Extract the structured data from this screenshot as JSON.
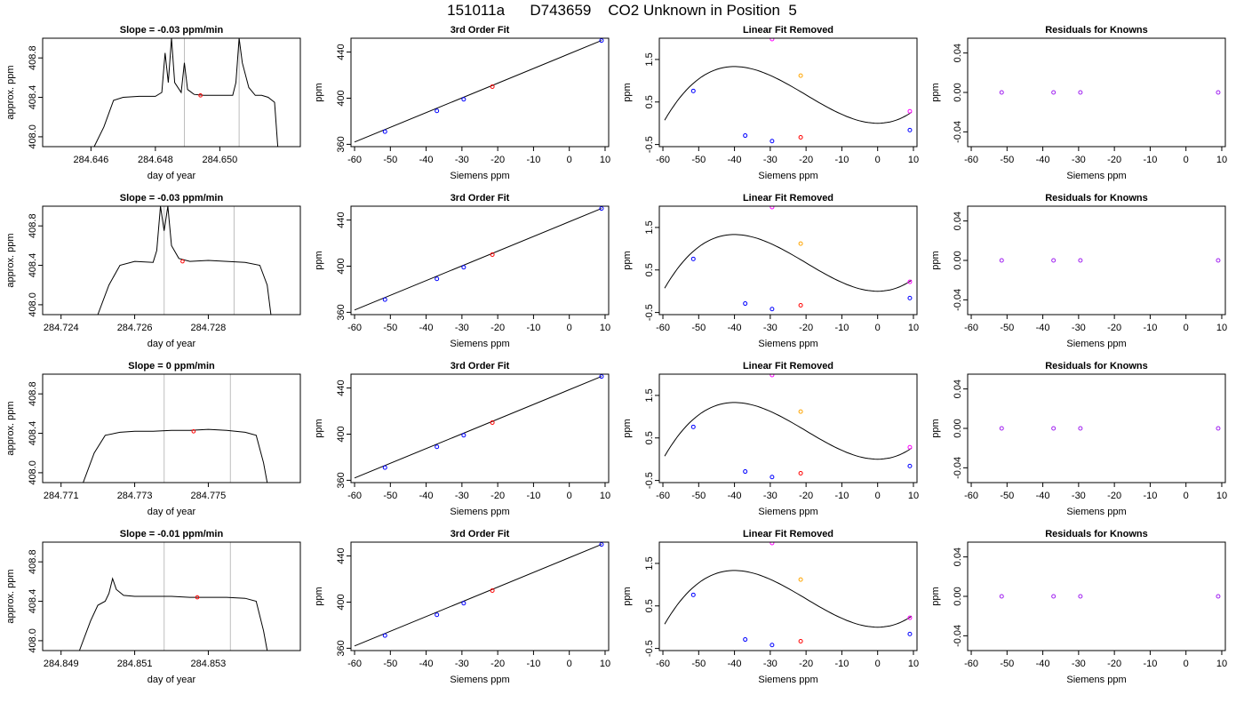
{
  "title": "151011a      D743659    CO2 Unknown in Position  5",
  "colors": {
    "trace": "#000000",
    "marker_line": "#bebebe",
    "reference_point": "#ff0000",
    "standard_point": "#0000ff",
    "known_residual": "#a020f0",
    "magenta_point": "#ff00ff",
    "orange_point": "#ffa500"
  },
  "chart_data": [
    {
      "type": "line",
      "title": "Slope =  -0.03  ppm/min",
      "xlabel": "day of year",
      "ylabel": "approx. ppm",
      "xlim": [
        284.6445,
        284.6525
      ],
      "ylim": [
        407.9,
        409.0
      ],
      "xticks": [
        "284.646",
        "284.648",
        "284.650"
      ],
      "xtick_values": [
        284.646,
        284.648,
        284.65
      ],
      "yticks": [
        "408.0",
        "408.4",
        "408.8"
      ],
      "ytick_values": [
        408.0,
        408.4,
        408.8
      ],
      "vlines": [
        284.6489,
        284.6506
      ],
      "red_point": {
        "x": 284.6494,
        "y": 408.42
      },
      "x": [
        284.6461,
        284.6464,
        284.6467,
        284.647,
        284.6475,
        284.648,
        284.6482,
        284.6483,
        284.6484,
        284.6485,
        284.6486,
        284.6488,
        284.6489,
        284.649,
        284.6492,
        284.6495,
        284.65,
        284.6504,
        284.6505,
        284.6506,
        284.6507,
        284.6509,
        284.6511,
        284.6513,
        284.6515,
        284.6517,
        284.6518
      ],
      "y": [
        407.9,
        408.1,
        408.37,
        408.4,
        408.41,
        408.41,
        408.45,
        408.85,
        408.55,
        409.0,
        408.55,
        408.45,
        408.75,
        408.48,
        408.43,
        408.42,
        408.42,
        408.42,
        408.55,
        409.0,
        408.75,
        408.5,
        408.42,
        408.42,
        408.4,
        408.35,
        407.9
      ]
    },
    {
      "type": "scatter",
      "title": "3rd Order Fit",
      "xlabel": "Siemens ppm",
      "ylabel": "ppm",
      "xlim": [
        -61,
        11
      ],
      "ylim": [
        358,
        452
      ],
      "xticks": [
        "-60",
        "-50",
        "-40",
        "-30",
        "-20",
        "-10",
        "0",
        "10"
      ],
      "xtick_values": [
        -60,
        -50,
        -40,
        -30,
        -20,
        -10,
        0,
        10
      ],
      "yticks": [
        "360",
        "400",
        "440"
      ],
      "ytick_values": [
        360,
        400,
        440
      ],
      "line": {
        "x": [
          -60,
          9
        ],
        "y": [
          362,
          450
        ]
      },
      "blue_points": {
        "x": [
          -51.5,
          -37,
          -29.5,
          9
        ],
        "y": [
          371,
          389,
          399,
          450
        ]
      },
      "red_points": {
        "x": [
          -21.5
        ],
        "y": [
          410
        ]
      }
    },
    {
      "type": "scatter",
      "title": "Linear Fit Removed",
      "xlabel": "Siemens ppm",
      "ylabel": "ppm",
      "xlim": [
        -61,
        11
      ],
      "ylim": [
        -0.55,
        2.0
      ],
      "xticks": [
        "-60",
        "-50",
        "-40",
        "-30",
        "-20",
        "-10",
        "0",
        "10"
      ],
      "xtick_values": [
        -60,
        -50,
        -40,
        -30,
        -20,
        -10,
        0,
        10
      ],
      "yticks": [
        "-0.5",
        "0.5",
        "1.5"
      ],
      "ytick_values": [
        -0.5,
        0.5,
        1.5
      ],
      "curve_coeffs": [
        0,
        0,
        0.0025,
        4.1667e-05
      ],
      "curve_xrange": [
        -59.5,
        9.5
      ],
      "blue_points": {
        "x": [
          -51.5,
          -37,
          -29.5,
          9
        ],
        "y": [
          0.76,
          -0.29,
          -0.42,
          -0.16
        ]
      },
      "red_points": {
        "x": [
          -21.5
        ],
        "y": [
          -0.33
        ]
      },
      "magenta_points": {
        "x": [
          -29.5,
          9
        ],
        "y": [
          1.98,
          0.28
        ]
      },
      "orange_points": {
        "x": [
          -21.5
        ],
        "y": [
          1.12
        ]
      }
    },
    {
      "type": "scatter",
      "title": "Residuals for Knowns",
      "xlabel": "Siemens ppm",
      "ylabel": "ppm",
      "xlim": [
        -61,
        11
      ],
      "ylim": [
        -0.055,
        0.055
      ],
      "xticks": [
        "-60",
        "-50",
        "-40",
        "-30",
        "-20",
        "-10",
        "0",
        "10"
      ],
      "xtick_values": [
        -60,
        -50,
        -40,
        -30,
        -20,
        -10,
        0,
        10
      ],
      "yticks": [
        "-0.04",
        "0.00",
        "0.04"
      ],
      "ytick_values": [
        -0.04,
        0.0,
        0.04
      ],
      "points": {
        "x": [
          -51.5,
          -37,
          -29.5,
          9
        ],
        "y": [
          0,
          0,
          0,
          0
        ]
      }
    },
    {
      "type": "line",
      "title": "Slope =  -0.03  ppm/min",
      "xlabel": "day of year",
      "ylabel": "approx. ppm",
      "xlim": [
        284.7235,
        284.7305
      ],
      "ylim": [
        407.9,
        409.0
      ],
      "xticks": [
        "284.724",
        "284.726",
        "284.728"
      ],
      "xtick_values": [
        284.724,
        284.726,
        284.728
      ],
      "yticks": [
        "408.0",
        "408.4",
        "408.8"
      ],
      "ytick_values": [
        408.0,
        408.4,
        408.8
      ],
      "vlines": [
        284.7268,
        284.7287
      ],
      "red_point": {
        "x": 284.7273,
        "y": 408.44
      },
      "x": [
        284.725,
        284.7253,
        284.7256,
        284.726,
        284.7265,
        284.7266,
        284.7267,
        284.7268,
        284.7269,
        284.727,
        284.7272,
        284.7275,
        284.728,
        284.7285,
        284.729,
        284.7294,
        284.7296,
        284.7297
      ],
      "y": [
        407.9,
        408.2,
        408.4,
        408.44,
        408.43,
        408.55,
        409.0,
        408.75,
        409.0,
        408.6,
        408.47,
        408.44,
        408.45,
        408.44,
        408.43,
        408.4,
        408.2,
        407.9
      ]
    },
    {
      "type": "scatter",
      "title": "3rd Order Fit",
      "xlabel": "Siemens ppm",
      "ylabel": "ppm",
      "xlim": [
        -61,
        11
      ],
      "ylim": [
        358,
        452
      ],
      "xticks": [
        "-60",
        "-50",
        "-40",
        "-30",
        "-20",
        "-10",
        "0",
        "10"
      ],
      "xtick_values": [
        -60,
        -50,
        -40,
        -30,
        -20,
        -10,
        0,
        10
      ],
      "yticks": [
        "360",
        "400",
        "440"
      ],
      "ytick_values": [
        360,
        400,
        440
      ],
      "line": {
        "x": [
          -60,
          9
        ],
        "y": [
          362,
          450
        ]
      },
      "blue_points": {
        "x": [
          -51.5,
          -37,
          -29.5,
          9
        ],
        "y": [
          371,
          389,
          399,
          450
        ]
      },
      "red_points": {
        "x": [
          -21.5
        ],
        "y": [
          410
        ]
      }
    },
    {
      "type": "scatter",
      "title": "Linear Fit Removed",
      "xlabel": "Siemens ppm",
      "ylabel": "ppm",
      "xlim": [
        -61,
        11
      ],
      "ylim": [
        -0.55,
        2.0
      ],
      "xticks": [
        "-60",
        "-50",
        "-40",
        "-30",
        "-20",
        "-10",
        "0",
        "10"
      ],
      "xtick_values": [
        -60,
        -50,
        -40,
        -30,
        -20,
        -10,
        0,
        10
      ],
      "yticks": [
        "-0.5",
        "0.5",
        "1.5"
      ],
      "ytick_values": [
        -0.5,
        0.5,
        1.5
      ],
      "curve_coeffs": [
        0,
        0,
        0.0025,
        4.1667e-05
      ],
      "curve_xrange": [
        -59.5,
        9.5
      ],
      "blue_points": {
        "x": [
          -51.5,
          -37,
          -29.5,
          9
        ],
        "y": [
          0.76,
          -0.29,
          -0.42,
          -0.16
        ]
      },
      "red_points": {
        "x": [
          -21.5
        ],
        "y": [
          -0.33
        ]
      },
      "magenta_points": {
        "x": [
          -29.5,
          9
        ],
        "y": [
          1.98,
          0.22
        ]
      },
      "orange_points": {
        "x": [
          -21.5
        ],
        "y": [
          1.12
        ]
      }
    },
    {
      "type": "scatter",
      "title": "Residuals for Knowns",
      "xlabel": "Siemens ppm",
      "ylabel": "ppm",
      "xlim": [
        -61,
        11
      ],
      "ylim": [
        -0.055,
        0.055
      ],
      "xticks": [
        "-60",
        "-50",
        "-40",
        "-30",
        "-20",
        "-10",
        "0",
        "10"
      ],
      "xtick_values": [
        -60,
        -50,
        -40,
        -30,
        -20,
        -10,
        0,
        10
      ],
      "yticks": [
        "-0.04",
        "0.00",
        "0.04"
      ],
      "ytick_values": [
        -0.04,
        0.0,
        0.04
      ],
      "points": {
        "x": [
          -51.5,
          -37,
          -29.5,
          9
        ],
        "y": [
          0,
          0,
          0,
          0
        ]
      }
    },
    {
      "type": "line",
      "title": "Slope =  0  ppm/min",
      "xlabel": "day of year",
      "ylabel": "approx. ppm",
      "xlim": [
        284.7705,
        284.7775
      ],
      "ylim": [
        407.9,
        409.0
      ],
      "xticks": [
        "284.771",
        "284.773",
        "284.775"
      ],
      "xtick_values": [
        284.771,
        284.773,
        284.775
      ],
      "yticks": [
        "408.0",
        "408.4",
        "408.8"
      ],
      "ytick_values": [
        408.0,
        408.4,
        408.8
      ],
      "vlines": [
        284.7738,
        284.7756
      ],
      "red_point": {
        "x": 284.7746,
        "y": 408.42
      },
      "x": [
        284.7716,
        284.7719,
        284.7722,
        284.7726,
        284.773,
        284.7735,
        284.774,
        284.7745,
        284.775,
        284.7755,
        284.776,
        284.7763,
        284.7765,
        284.7766
      ],
      "y": [
        407.9,
        408.2,
        408.38,
        408.41,
        408.42,
        408.42,
        408.43,
        408.43,
        408.44,
        408.43,
        408.41,
        408.38,
        408.1,
        407.9
      ]
    },
    {
      "type": "scatter",
      "title": "3rd Order Fit",
      "xlabel": "Siemens ppm",
      "ylabel": "ppm",
      "xlim": [
        -61,
        11
      ],
      "ylim": [
        358,
        452
      ],
      "xticks": [
        "-60",
        "-50",
        "-40",
        "-30",
        "-20",
        "-10",
        "0",
        "10"
      ],
      "xtick_values": [
        -60,
        -50,
        -40,
        -30,
        -20,
        -10,
        0,
        10
      ],
      "yticks": [
        "360",
        "400",
        "440"
      ],
      "ytick_values": [
        360,
        400,
        440
      ],
      "line": {
        "x": [
          -60,
          9
        ],
        "y": [
          362,
          450
        ]
      },
      "blue_points": {
        "x": [
          -51.5,
          -37,
          -29.5,
          9
        ],
        "y": [
          371,
          389,
          399,
          450
        ]
      },
      "red_points": {
        "x": [
          -21.5
        ],
        "y": [
          410
        ]
      }
    },
    {
      "type": "scatter",
      "title": "Linear Fit Removed",
      "xlabel": "Siemens ppm",
      "ylabel": "ppm",
      "xlim": [
        -61,
        11
      ],
      "ylim": [
        -0.55,
        2.0
      ],
      "xticks": [
        "-60",
        "-50",
        "-40",
        "-30",
        "-20",
        "-10",
        "0",
        "10"
      ],
      "xtick_values": [
        -60,
        -50,
        -40,
        -30,
        -20,
        -10,
        0,
        10
      ],
      "yticks": [
        "-0.5",
        "0.5",
        "1.5"
      ],
      "ytick_values": [
        -0.5,
        0.5,
        1.5
      ],
      "curve_coeffs": [
        0,
        0,
        0.0025,
        4.1667e-05
      ],
      "curve_xrange": [
        -59.5,
        9.5
      ],
      "blue_points": {
        "x": [
          -51.5,
          -37,
          -29.5,
          9
        ],
        "y": [
          0.76,
          -0.29,
          -0.42,
          -0.16
        ]
      },
      "red_points": {
        "x": [
          -21.5
        ],
        "y": [
          -0.33
        ]
      },
      "magenta_points": {
        "x": [
          -29.5,
          9
        ],
        "y": [
          1.98,
          0.28
        ]
      },
      "orange_points": {
        "x": [
          -21.5
        ],
        "y": [
          1.12
        ]
      }
    },
    {
      "type": "scatter",
      "title": "Residuals for Knowns",
      "xlabel": "Siemens ppm",
      "ylabel": "ppm",
      "xlim": [
        -61,
        11
      ],
      "ylim": [
        -0.055,
        0.055
      ],
      "xticks": [
        "-60",
        "-50",
        "-40",
        "-30",
        "-20",
        "-10",
        "0",
        "10"
      ],
      "xtick_values": [
        -60,
        -50,
        -40,
        -30,
        -20,
        -10,
        0,
        10
      ],
      "yticks": [
        "-0.04",
        "0.00",
        "0.04"
      ],
      "ytick_values": [
        -0.04,
        0.0,
        0.04
      ],
      "points": {
        "x": [
          -51.5,
          -37,
          -29.5,
          9
        ],
        "y": [
          0,
          0,
          0,
          0
        ]
      }
    },
    {
      "type": "line",
      "title": "Slope =  -0.01  ppm/min",
      "xlabel": "day of year",
      "ylabel": "approx. ppm",
      "xlim": [
        284.8485,
        284.8555
      ],
      "ylim": [
        407.9,
        409.0
      ],
      "xticks": [
        "284.849",
        "284.851",
        "284.853"
      ],
      "xtick_values": [
        284.849,
        284.851,
        284.853
      ],
      "yticks": [
        "408.0",
        "408.4",
        "408.8"
      ],
      "ytick_values": [
        408.0,
        408.4,
        408.8
      ],
      "vlines": [
        284.8518,
        284.8536
      ],
      "red_point": {
        "x": 284.8527,
        "y": 408.44
      },
      "x": [
        284.8495,
        284.8498,
        284.85,
        284.8502,
        284.8503,
        284.8504,
        284.8505,
        284.8507,
        284.851,
        284.8515,
        284.852,
        284.8525,
        284.853,
        284.8535,
        284.854,
        284.8543,
        284.8545,
        284.8546
      ],
      "y": [
        407.9,
        408.2,
        408.36,
        408.4,
        408.48,
        408.63,
        408.52,
        408.46,
        408.45,
        408.45,
        408.45,
        408.44,
        408.44,
        408.44,
        408.43,
        408.4,
        408.1,
        407.9
      ]
    },
    {
      "type": "scatter",
      "title": "3rd Order Fit",
      "xlabel": "Siemens ppm",
      "ylabel": "ppm",
      "xlim": [
        -61,
        11
      ],
      "ylim": [
        358,
        452
      ],
      "xticks": [
        "-60",
        "-50",
        "-40",
        "-30",
        "-20",
        "-10",
        "0",
        "10"
      ],
      "xtick_values": [
        -60,
        -50,
        -40,
        -30,
        -20,
        -10,
        0,
        10
      ],
      "yticks": [
        "360",
        "400",
        "440"
      ],
      "ytick_values": [
        360,
        400,
        440
      ],
      "line": {
        "x": [
          -60,
          9
        ],
        "y": [
          362,
          450
        ]
      },
      "blue_points": {
        "x": [
          -51.5,
          -37,
          -29.5,
          9
        ],
        "y": [
          371,
          389,
          399,
          450
        ]
      },
      "red_points": {
        "x": [
          -21.5
        ],
        "y": [
          410
        ]
      }
    },
    {
      "type": "scatter",
      "title": "Linear Fit Removed",
      "xlabel": "Siemens ppm",
      "ylabel": "ppm",
      "xlim": [
        -61,
        11
      ],
      "ylim": [
        -0.55,
        2.0
      ],
      "xticks": [
        "-60",
        "-50",
        "-40",
        "-30",
        "-20",
        "-10",
        "0",
        "10"
      ],
      "xtick_values": [
        -60,
        -50,
        -40,
        -30,
        -20,
        -10,
        0,
        10
      ],
      "yticks": [
        "-0.5",
        "0.5",
        "1.5"
      ],
      "ytick_values": [
        -0.5,
        0.5,
        1.5
      ],
      "curve_coeffs": [
        0,
        0,
        0.0025,
        4.1667e-05
      ],
      "curve_xrange": [
        -59.5,
        9.5
      ],
      "blue_points": {
        "x": [
          -51.5,
          -37,
          -29.5,
          9
        ],
        "y": [
          0.76,
          -0.29,
          -0.42,
          -0.16
        ]
      },
      "red_points": {
        "x": [
          -21.5
        ],
        "y": [
          -0.33
        ]
      },
      "magenta_points": {
        "x": [
          -29.5,
          9
        ],
        "y": [
          1.98,
          0.22
        ]
      },
      "orange_points": {
        "x": [
          -21.5
        ],
        "y": [
          1.12
        ]
      }
    },
    {
      "type": "scatter",
      "title": "Residuals for Knowns",
      "xlabel": "Siemens ppm",
      "ylabel": "ppm",
      "xlim": [
        -61,
        11
      ],
      "ylim": [
        -0.055,
        0.055
      ],
      "xticks": [
        "-60",
        "-50",
        "-40",
        "-30",
        "-20",
        "-10",
        "0",
        "10"
      ],
      "xtick_values": [
        -60,
        -50,
        -40,
        -30,
        -20,
        -10,
        0,
        10
      ],
      "yticks": [
        "-0.04",
        "0.00",
        "0.04"
      ],
      "ytick_values": [
        -0.04,
        0.0,
        0.04
      ],
      "points": {
        "x": [
          -51.5,
          -37,
          -29.5,
          9
        ],
        "y": [
          0,
          0,
          0,
          0
        ]
      }
    }
  ]
}
